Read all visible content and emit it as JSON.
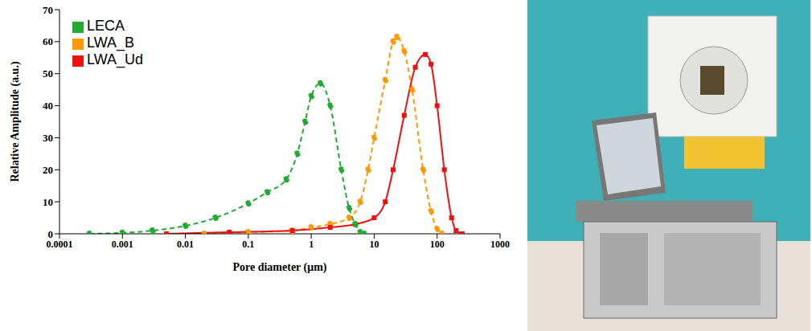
{
  "chart_data": {
    "type": "line",
    "x_label": "Pore diameter (μm)",
    "y_label": "Relative Amplitude (a.u.)",
    "log": "x",
    "xlim": [
      0.0001,
      1000
    ],
    "xticks": [
      0.0001,
      0.001,
      0.01,
      0.1,
      1,
      10,
      100,
      1000
    ],
    "ylim": [
      0,
      70
    ],
    "yticks": [
      0,
      10,
      20,
      30,
      40,
      50,
      60,
      70
    ],
    "legend": "upper left",
    "series": [
      {
        "name": "LWA_B",
        "color": "#ff9900",
        "marker": "circle",
        "line_style": "dashed",
        "x": [
          0.02,
          0.1,
          0.5,
          1,
          2,
          4,
          6,
          8,
          10,
          15,
          20,
          23,
          30,
          40,
          60,
          80,
          100,
          120
        ],
        "values": [
          0,
          0.5,
          1,
          2,
          3,
          5,
          10,
          20,
          30,
          48,
          60,
          61.5,
          57,
          45,
          20,
          7,
          1.5,
          0
        ]
      },
      {
        "name": "LWA_Ud",
        "color": "#ee1111",
        "marker": "square",
        "line_style": "solid",
        "x": [
          0.005,
          0.05,
          0.5,
          2,
          5,
          10,
          15,
          20,
          30,
          45,
          65,
          80,
          100,
          130,
          170,
          200,
          250
        ],
        "values": [
          0,
          0.5,
          1,
          2,
          3,
          5,
          10,
          20,
          37,
          52,
          56,
          53,
          40,
          20,
          5,
          1,
          0
        ]
      },
      {
        "name": "LECA",
        "color": "#22aa33",
        "marker": "circle",
        "line_style": "dashed",
        "x": [
          0.0003,
          0.001,
          0.003,
          0.01,
          0.03,
          0.1,
          0.2,
          0.4,
          0.6,
          0.8,
          1,
          1.4,
          2,
          3,
          4,
          5,
          6,
          7
        ],
        "values": [
          0,
          0.3,
          1,
          2.5,
          5,
          9.5,
          13,
          17,
          25,
          35,
          43,
          47,
          40,
          20,
          8,
          3,
          0.5,
          0
        ]
      }
    ]
  }
}
